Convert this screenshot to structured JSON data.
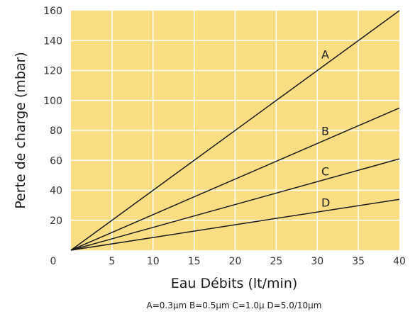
{
  "chart_data": {
    "type": "line",
    "xlabel": "Eau Débits (lt/min)",
    "ylabel": "Perte de charge  (mbar)",
    "xlim": [
      0,
      40
    ],
    "ylim": [
      0,
      160
    ],
    "x_ticks": [
      0,
      5,
      10,
      15,
      20,
      25,
      30,
      35,
      40
    ],
    "y_ticks": [
      20,
      40,
      60,
      80,
      100,
      120,
      140,
      160
    ],
    "grid": true,
    "legend_note": "A=0.3μm B=0.5μm C=1.0μ D=5.0/10μm",
    "colors": {
      "plot_bg": "#fbdd83",
      "grid": "#ffffff",
      "line": "#1a1a1a"
    },
    "series": [
      {
        "name": "A",
        "x": [
          0,
          40
        ],
        "y": [
          0,
          160
        ],
        "label_at": [
          30.5,
          128
        ]
      },
      {
        "name": "B",
        "x": [
          0,
          40
        ],
        "y": [
          0,
          95
        ],
        "label_at": [
          30.5,
          77
        ]
      },
      {
        "name": "C",
        "x": [
          0,
          40
        ],
        "y": [
          0,
          61
        ],
        "label_at": [
          30.5,
          50
        ]
      },
      {
        "name": "D",
        "x": [
          0,
          40
        ],
        "y": [
          0,
          34
        ],
        "label_at": [
          30.5,
          29
        ]
      }
    ]
  }
}
